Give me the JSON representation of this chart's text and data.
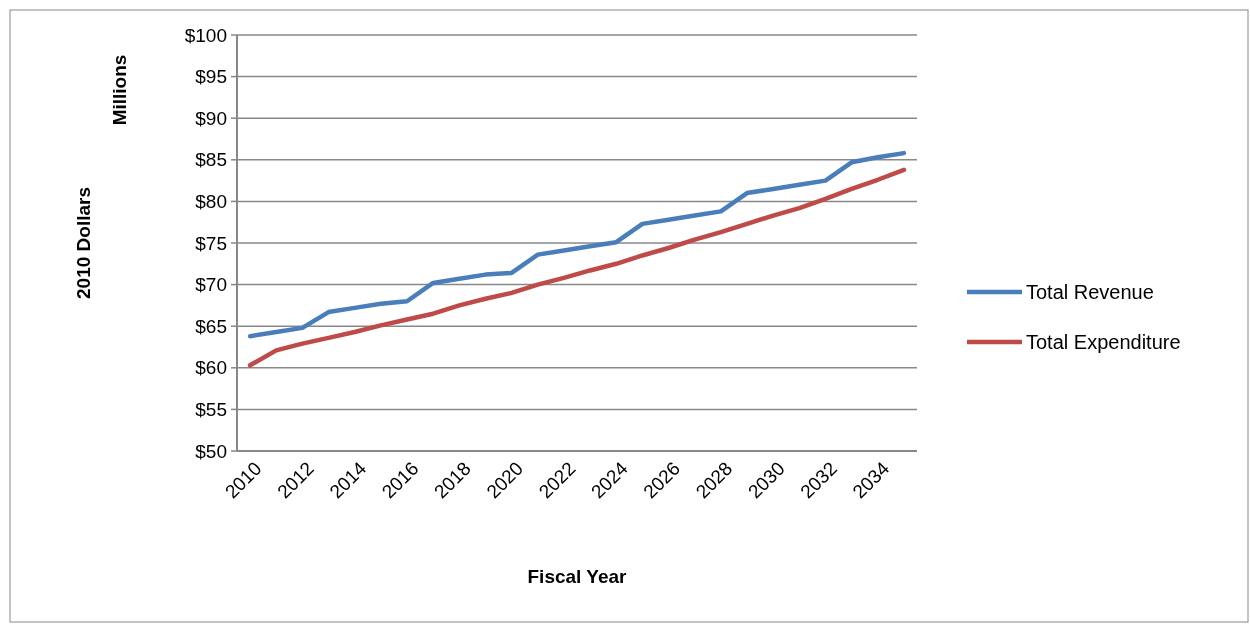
{
  "chart_data": {
    "type": "line",
    "xlabel": "Fiscal Year",
    "ylabel": "2010 Dollars",
    "y2label": "Millions",
    "categories": [
      "2010",
      null,
      "2012",
      null,
      "2014",
      null,
      "2016",
      null,
      "2018",
      null,
      "2020",
      null,
      "2022",
      null,
      "2024",
      null,
      "2026",
      null,
      "2028",
      null,
      "2030",
      null,
      "2032",
      null,
      "2034",
      null
    ],
    "series": [
      {
        "name": "Total Revenue",
        "color": "#4a7ebb",
        "values": [
          63.8,
          64.3,
          64.8,
          66.7,
          67.2,
          67.7,
          68.0,
          70.2,
          70.7,
          71.2,
          71.4,
          73.6,
          74.1,
          74.6,
          75.1,
          77.3,
          77.8,
          78.3,
          78.8,
          81.0,
          81.5,
          82.0,
          82.5,
          84.7,
          85.3,
          85.8
        ]
      },
      {
        "name": "Total Expenditure",
        "color": "#be4b48",
        "values": [
          60.3,
          62.1,
          62.9,
          63.6,
          64.3,
          65.1,
          65.8,
          66.5,
          67.5,
          68.3,
          69.0,
          70.0,
          70.8,
          71.7,
          72.5,
          73.5,
          74.4,
          75.4,
          76.3,
          77.3,
          78.3,
          79.2,
          80.3,
          81.5,
          82.6,
          83.8
        ]
      }
    ],
    "ylim": [
      50,
      100
    ],
    "yticks": [
      {
        "value": 50,
        "label": "$50"
      },
      {
        "value": 55,
        "label": "$55"
      },
      {
        "value": 60,
        "label": "$60"
      },
      {
        "value": 65,
        "label": "$65"
      },
      {
        "value": 70,
        "label": "$70"
      },
      {
        "value": 75,
        "label": "$75"
      },
      {
        "value": 80,
        "label": "$80"
      },
      {
        "value": 85,
        "label": "$85"
      },
      {
        "value": 90,
        "label": "$90"
      },
      {
        "value": 95,
        "label": "$95"
      },
      {
        "value": 100,
        "label": "$100"
      }
    ],
    "grid": "y",
    "legend": "right",
    "marker": "none",
    "line_style": "solid"
  }
}
